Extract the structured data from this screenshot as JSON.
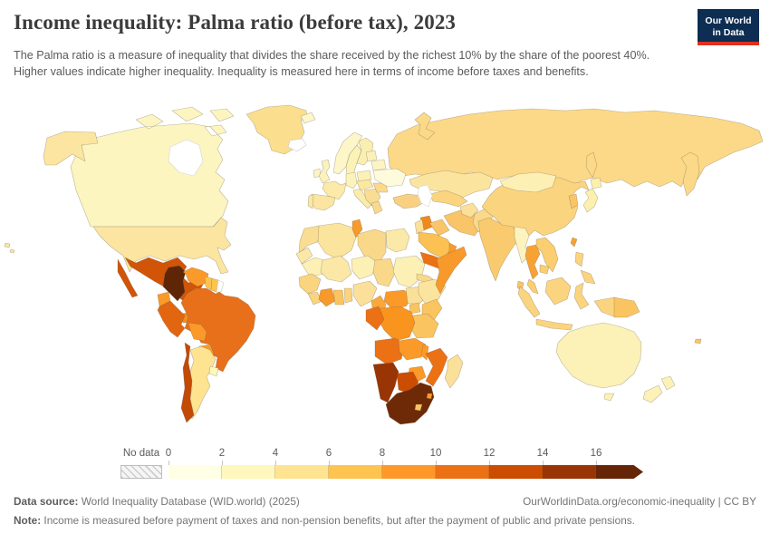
{
  "header": {
    "title": "Income inequality: Palma ratio (before tax), 2023",
    "subtitle": "The Palma ratio is a measure of inequality that divides the share received by the richest 10% by the share of the poorest 40%. Higher values indicate higher inequality. Inequality is measured here in terms of income before taxes and benefits.",
    "logo": {
      "line1": "Our World",
      "line2": "in Data",
      "bg_color": "#0d2d52",
      "accent_color": "#e0301e"
    }
  },
  "legend": {
    "no_data_label": "No data",
    "ticks": [
      "0",
      "2",
      "4",
      "6",
      "8",
      "10",
      "12",
      "14",
      "16"
    ],
    "bin_colors": [
      "#FFFFE5",
      "#FFF7BC",
      "#FEE391",
      "#FEC44F",
      "#FE9929",
      "#EC7014",
      "#CC4C02",
      "#993404",
      "#662506"
    ],
    "segment_width": 59,
    "arrow_width": 52
  },
  "chart_data": {
    "type": "choropleth",
    "title": "Income inequality: Palma ratio (before tax), 2023",
    "year": "2023",
    "measure": "Palma ratio (share of richest 10% / share of poorest 40%), before tax",
    "legend_bins": [
      {
        "range": "0-2",
        "color": "#FFFFE5"
      },
      {
        "range": "2-4",
        "color": "#FFF7BC"
      },
      {
        "range": "4-6",
        "color": "#FEE391"
      },
      {
        "range": "6-8",
        "color": "#FEC44F"
      },
      {
        "range": "8-10",
        "color": "#FE9929"
      },
      {
        "range": "10-12",
        "color": "#EC7014"
      },
      {
        "range": "12-14",
        "color": "#CC4C02"
      },
      {
        "range": "14-16",
        "color": "#993404"
      },
      {
        "range": "16+",
        "color": "#662506"
      },
      {
        "range": "No data",
        "color": "#FFFFFF"
      }
    ],
    "regions": [
      {
        "id": "russia",
        "bin": "4-6",
        "color": "#FBD988"
      },
      {
        "id": "kamchatka-russia",
        "bin": "4-6",
        "color": "#FBD988"
      },
      {
        "id": "sakhalin-russia",
        "bin": "4-6",
        "color": "#FBD988"
      },
      {
        "id": "novaya-zemlya-russia",
        "bin": "4-6",
        "color": "#FBD988"
      },
      {
        "id": "canada",
        "bin": "2-4",
        "color": "#FCF5C0"
      },
      {
        "id": "alaska-usa",
        "bin": "4-6",
        "color": "#FBE5A0"
      },
      {
        "id": "greenland",
        "bin": "4-6",
        "color": "#FBDF8E"
      },
      {
        "id": "iceland",
        "bin": "No data",
        "color": "#FFFFFF"
      },
      {
        "id": "svalbard",
        "bin": "2-4",
        "color": "#FCF6C8"
      },
      {
        "id": "usa",
        "bin": "4-6",
        "color": "#FBE5A0"
      },
      {
        "id": "hawaii-usa",
        "bin": "4-6",
        "color": "#FBE5A0"
      },
      {
        "id": "mexico",
        "bin": "12-14",
        "color": "#D25406"
      },
      {
        "id": "baja-mexico",
        "bin": "12-14",
        "color": "#D25406"
      },
      {
        "id": "guatemala",
        "bin": "8-10",
        "color": "#F18E1E"
      },
      {
        "id": "honduras",
        "bin": "8-10",
        "color": "#FB9A29"
      },
      {
        "id": "nicaragua",
        "bin": "8-10",
        "color": "#FB9A29"
      },
      {
        "id": "costa-rica",
        "bin": "10-12",
        "color": "#EC7014"
      },
      {
        "id": "panama",
        "bin": "10-12",
        "color": "#E87014"
      },
      {
        "id": "cuba",
        "bin": "6-8",
        "color": "#FBB342"
      },
      {
        "id": "hispaniola",
        "bin": "8-10",
        "color": "#F29120"
      },
      {
        "id": "jamaica",
        "bin": "6-8",
        "color": "#FEC44F"
      },
      {
        "id": "colombia",
        "bin": "16+",
        "color": "#5E2506"
      },
      {
        "id": "venezuela",
        "bin": "8-10",
        "color": "#FB9A29"
      },
      {
        "id": "guyana",
        "bin": "6-8",
        "color": "#FEC44F"
      },
      {
        "id": "suriname",
        "bin": "6-8",
        "color": "#FEC44F"
      },
      {
        "id": "french-guiana",
        "bin": "No data",
        "color": "#FFFFFF"
      },
      {
        "id": "ecuador",
        "bin": "8-10",
        "color": "#FB9A29"
      },
      {
        "id": "peru",
        "bin": "10-12",
        "color": "#E2660F"
      },
      {
        "id": "brazil",
        "bin": "10-12",
        "color": "#E8701A"
      },
      {
        "id": "bolivia",
        "bin": "8-10",
        "color": "#FB9A29"
      },
      {
        "id": "paraguay",
        "bin": "8-10",
        "color": "#FB9A29"
      },
      {
        "id": "argentina",
        "bin": "4-6",
        "color": "#FEE391"
      },
      {
        "id": "chile",
        "bin": "12-14",
        "color": "#C34A04"
      },
      {
        "id": "uruguay",
        "bin": "2-4",
        "color": "#FFF7BC"
      },
      {
        "id": "norway",
        "bin": "2-4",
        "color": "#FCF6C8"
      },
      {
        "id": "sweden",
        "bin": "2-4",
        "color": "#FBF2B8"
      },
      {
        "id": "finland",
        "bin": "2-4",
        "color": "#FAEFB0"
      },
      {
        "id": "denmark",
        "bin": "2-4",
        "color": "#FCF4C4"
      },
      {
        "id": "ireland",
        "bin": "2-4",
        "color": "#FCF4C4"
      },
      {
        "id": "united-kingdom",
        "bin": "2-4",
        "color": "#FBF2BC"
      },
      {
        "id": "france",
        "bin": "4-6",
        "color": "#FBEAA8"
      },
      {
        "id": "spain",
        "bin": "4-6",
        "color": "#FBE5A0"
      },
      {
        "id": "portugal",
        "bin": "4-6",
        "color": "#FBE8A4"
      },
      {
        "id": "germany",
        "bin": "2-4",
        "color": "#FCF2BB"
      },
      {
        "id": "italy",
        "bin": "4-6",
        "color": "#FBECAC"
      },
      {
        "id": "poland",
        "bin": "2-4",
        "color": "#FCF0B5"
      },
      {
        "id": "central-europe",
        "bin": "4-6",
        "color": "#FAE8A0"
      },
      {
        "id": "balkans",
        "bin": "4-6",
        "color": "#F9DD92"
      },
      {
        "id": "greece",
        "bin": "4-6",
        "color": "#FAD98D"
      },
      {
        "id": "romania",
        "bin": "4-6",
        "color": "#FBD98C"
      },
      {
        "id": "ukraine",
        "bin": "0-2",
        "color": "#FEFBDC"
      },
      {
        "id": "belarus",
        "bin": "2-4",
        "color": "#FCF4C2"
      },
      {
        "id": "baltics",
        "bin": "2-4",
        "color": "#FBF0B8"
      },
      {
        "id": "turkey",
        "bin": "4-6",
        "color": "#F9D082"
      },
      {
        "id": "syria",
        "bin": "8-10",
        "color": "#F0891C"
      },
      {
        "id": "jordan-israel",
        "bin": "4-6",
        "color": "#FBE09A"
      },
      {
        "id": "iraq",
        "bin": "6-8",
        "color": "#FAC468"
      },
      {
        "id": "iran",
        "bin": "6-8",
        "color": "#FAC468"
      },
      {
        "id": "saudi-arabia",
        "bin": "6-8",
        "color": "#FBC152"
      },
      {
        "id": "yemen",
        "bin": "10-12",
        "color": "#EC7014"
      },
      {
        "id": "oman",
        "bin": "8-10",
        "color": "#FB9A29"
      },
      {
        "id": "kazakhstan",
        "bin": "4-6",
        "color": "#FBE49E"
      },
      {
        "id": "uzbekistan-turkmenistan",
        "bin": "6-8",
        "color": "#FAD47E"
      },
      {
        "id": "afghanistan",
        "bin": "4-6",
        "color": "#FBE09A"
      },
      {
        "id": "pakistan",
        "bin": "4-6",
        "color": "#FAD98C"
      },
      {
        "id": "india",
        "bin": "6-8",
        "color": "#FACB6E"
      },
      {
        "id": "sri-lanka",
        "bin": "6-8",
        "color": "#FAC468"
      },
      {
        "id": "bangladesh",
        "bin": "6-8",
        "color": "#FAC468"
      },
      {
        "id": "china",
        "bin": "4-6",
        "color": "#FBD47F"
      },
      {
        "id": "mongolia",
        "bin": "2-4",
        "color": "#FCF0B5"
      },
      {
        "id": "south-korea",
        "bin": "6-8",
        "color": "#FAC468"
      },
      {
        "id": "japan",
        "bin": "2-4",
        "color": "#FCF0AE"
      },
      {
        "id": "taiwan",
        "bin": "8-10",
        "color": "#F8A234"
      },
      {
        "id": "myanmar",
        "bin": "2-4",
        "color": "#FCF3BE"
      },
      {
        "id": "thailand",
        "bin": "8-10",
        "color": "#F8A234"
      },
      {
        "id": "laos-vietnam",
        "bin": "6-8",
        "color": "#FBCE70"
      },
      {
        "id": "cambodia",
        "bin": "6-8",
        "color": "#FBCE70"
      },
      {
        "id": "malaysia",
        "bin": "6-8",
        "color": "#FBCE70"
      },
      {
        "id": "indonesia",
        "bin": "6-8",
        "color": "#FBD47F"
      },
      {
        "id": "philippines",
        "bin": "6-8",
        "color": "#FBD47F"
      },
      {
        "id": "papua-new-guinea",
        "bin": "6-8",
        "color": "#FAC460"
      },
      {
        "id": "australia",
        "bin": "2-4",
        "color": "#FCF1B6"
      },
      {
        "id": "new-zealand",
        "bin": "2-4",
        "color": "#FCF1B6"
      },
      {
        "id": "fiji",
        "bin": "6-8",
        "color": "#FAC460"
      },
      {
        "id": "morocco",
        "bin": "4-6",
        "color": "#F9DD92"
      },
      {
        "id": "western-sahara",
        "bin": "4-6",
        "color": "#FBE8A6"
      },
      {
        "id": "mauritania",
        "bin": "2-4",
        "color": "#FCF0B5"
      },
      {
        "id": "algeria",
        "bin": "4-6",
        "color": "#FBE49E"
      },
      {
        "id": "tunisia",
        "bin": "8-10",
        "color": "#F59A2B"
      },
      {
        "id": "libya",
        "bin": "4-6",
        "color": "#FAD88A"
      },
      {
        "id": "egypt",
        "bin": "4-6",
        "color": "#FBE9A8"
      },
      {
        "id": "mali",
        "bin": "4-6",
        "color": "#FBE8A6"
      },
      {
        "id": "niger",
        "bin": "2-4",
        "color": "#FCF0B5"
      },
      {
        "id": "chad",
        "bin": "4-6",
        "color": "#FAD88A"
      },
      {
        "id": "sudan",
        "bin": "2-4",
        "color": "#FCF0B5"
      },
      {
        "id": "eritrea",
        "bin": "4-6",
        "color": "#FAD88A"
      },
      {
        "id": "senegal-guinea",
        "bin": "6-8",
        "color": "#FAD47E"
      },
      {
        "id": "sierra-leone-liberia",
        "bin": "6-8",
        "color": "#FAD47E"
      },
      {
        "id": "cote-divoire",
        "bin": "8-10",
        "color": "#F8992B"
      },
      {
        "id": "ghana",
        "bin": "6-8",
        "color": "#FAC460"
      },
      {
        "id": "togo-benin",
        "bin": "6-8",
        "color": "#FAD47E"
      },
      {
        "id": "nigeria",
        "bin": "4-6",
        "color": "#FBE09A"
      },
      {
        "id": "cameroon",
        "bin": "8-10",
        "color": "#FAA83C"
      },
      {
        "id": "central-african-republic",
        "bin": "8-10",
        "color": "#FB9A29"
      },
      {
        "id": "south-sudan",
        "bin": "4-6",
        "color": "#FBE09A"
      },
      {
        "id": "ethiopia",
        "bin": "4-6",
        "color": "#FBE49E"
      },
      {
        "id": "somalia",
        "bin": "8-10",
        "color": "#F8992B"
      },
      {
        "id": "uganda",
        "bin": "6-8",
        "color": "#FAC460"
      },
      {
        "id": "kenya",
        "bin": "6-8",
        "color": "#FAC460"
      },
      {
        "id": "tanzania",
        "bin": "6-8",
        "color": "#FAC460"
      },
      {
        "id": "dr-congo",
        "bin": "8-10",
        "color": "#F9941E"
      },
      {
        "id": "gabon-congo",
        "bin": "10-12",
        "color": "#EC7014"
      },
      {
        "id": "angola",
        "bin": "10-12",
        "color": "#EC7014"
      },
      {
        "id": "zambia",
        "bin": "8-10",
        "color": "#FB9A29"
      },
      {
        "id": "malawi",
        "bin": "8-10",
        "color": "#FB9A29"
      },
      {
        "id": "mozambique",
        "bin": "10-12",
        "color": "#EC7014"
      },
      {
        "id": "zimbabwe",
        "bin": "8-10",
        "color": "#FB9A29"
      },
      {
        "id": "botswana",
        "bin": "12-14",
        "color": "#CC4C02"
      },
      {
        "id": "namibia",
        "bin": "14-16",
        "color": "#993404"
      },
      {
        "id": "south-africa",
        "bin": "16+",
        "color": "#6E2A06"
      },
      {
        "id": "lesotho",
        "bin": "6-8",
        "color": "#FAC460"
      },
      {
        "id": "eswatini",
        "bin": "8-10",
        "color": "#FB9A29"
      },
      {
        "id": "madagascar",
        "bin": "4-6",
        "color": "#FBE09A"
      }
    ]
  },
  "footer": {
    "source_label": "Data source:",
    "source_text": " World Inequality Database (WID.world) (2025)",
    "link_text": "OurWorldinData.org/economic-inequality | CC BY",
    "note_label": "Note:",
    "note_text": " Income is measured before payment of taxes and non-pension benefits, but after the payment of public and private pensions."
  }
}
